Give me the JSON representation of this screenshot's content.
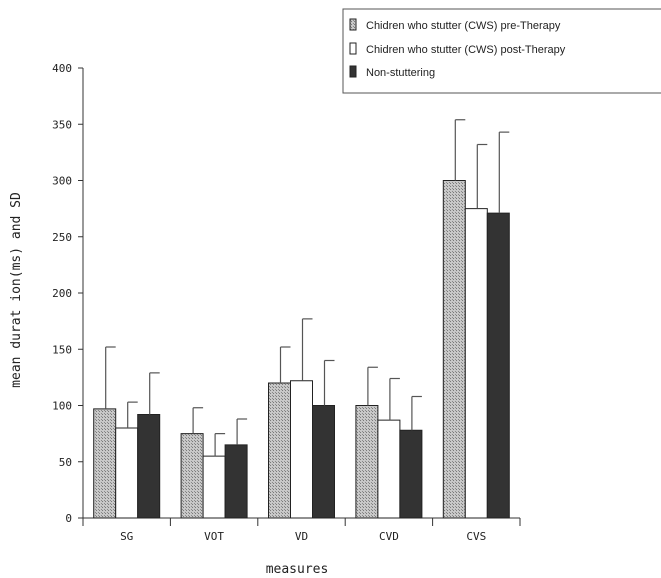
{
  "chart_data": {
    "type": "bar",
    "xlabel": "measures",
    "ylabel": "mean durat ion(ms) and SD",
    "ylim": [
      0,
      400
    ],
    "yticks": [
      0,
      50,
      100,
      150,
      200,
      250,
      300,
      350,
      400
    ],
    "categories": [
      "SG",
      "VOT",
      "VD",
      "CVD",
      "CVS"
    ],
    "series": [
      {
        "name": "Chidren who stutter (CWS) pre-Therapy",
        "fill": "#b8b8b8",
        "values": [
          97,
          75,
          120,
          100,
          300
        ],
        "sd": [
          55,
          23,
          32,
          34,
          54
        ]
      },
      {
        "name": "Chidren who stutter (CWS) post-Therapy",
        "fill": "#ffffff",
        "values": [
          80,
          55,
          122,
          87,
          275
        ],
        "sd": [
          23,
          20,
          55,
          37,
          57
        ]
      },
      {
        "name": "Non-stuttering",
        "fill": "#333333",
        "values": [
          92,
          65,
          100,
          78,
          271
        ],
        "sd": [
          37,
          23,
          40,
          30,
          72
        ]
      }
    ],
    "legend_position": "top-right",
    "grid": false
  }
}
